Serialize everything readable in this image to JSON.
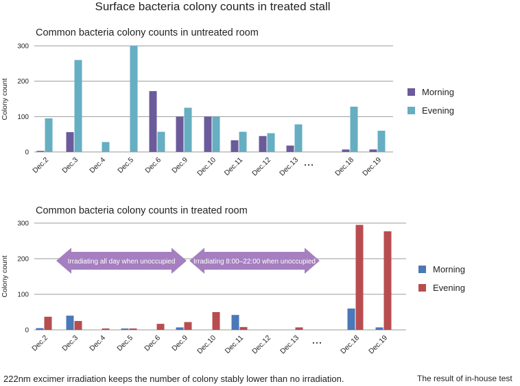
{
  "title": "Surface bacteria colony counts in treated stall",
  "footer": {
    "left": "222nm excimer irradiation keeps the number of colony stably lower than no irradiation.",
    "right": "The result of in-house test"
  },
  "chart_data": [
    {
      "type": "bar",
      "title": "Common bacteria colony counts in untreated room",
      "ylabel": "Colony count",
      "ylim": [
        0,
        300
      ],
      "yticks": [
        0,
        100,
        200,
        300
      ],
      "categories": [
        "Dec.2",
        "Dec.3",
        "Dec.4",
        "Dec.5",
        "Dec.6",
        "Dec.9",
        "Dec.10",
        "Dec.11",
        "Dec.12",
        "Dec.13",
        "...",
        "Dec.18",
        "Dec.19"
      ],
      "series": [
        {
          "name": "Morning",
          "color": "#6b5b9a",
          "values": [
            3,
            56,
            0,
            0,
            172,
            100,
            100,
            33,
            45,
            18,
            null,
            7,
            7
          ]
        },
        {
          "name": "Evening",
          "color": "#66aec2",
          "values": [
            95,
            260,
            28,
            300,
            57,
            125,
            100,
            57,
            53,
            78,
            null,
            128,
            60
          ]
        }
      ],
      "legend_position": "right"
    },
    {
      "type": "bar",
      "title": "Common bacteria colony counts in treated room",
      "ylabel": "Colony count",
      "ylim": [
        0,
        300
      ],
      "yticks": [
        0,
        100,
        200,
        300
      ],
      "categories": [
        "Dec.2",
        "Dec.3",
        "Dec.4",
        "Dec.5",
        "Dec.6",
        "Dec.9",
        "Dec.10",
        "Dec.11",
        "Dec.12",
        "Dec.13",
        "...",
        "Dec.18",
        "Dec.19"
      ],
      "series": [
        {
          "name": "Morning",
          "color": "#4a78b8",
          "values": [
            5,
            40,
            0,
            4,
            0,
            7,
            0,
            42,
            0,
            0,
            null,
            60,
            7
          ]
        },
        {
          "name": "Evening",
          "color": "#b84d4f",
          "values": [
            37,
            25,
            4,
            4,
            17,
            22,
            50,
            8,
            0,
            7,
            null,
            295,
            277
          ]
        }
      ],
      "legend_position": "right",
      "annotations": [
        {
          "text": "Irradiating all day when unoccupied",
          "color": "#a57fbf"
        },
        {
          "text": "Irradiating 8:00–22:00 when unoccupied",
          "color": "#a57fbf"
        }
      ]
    }
  ]
}
